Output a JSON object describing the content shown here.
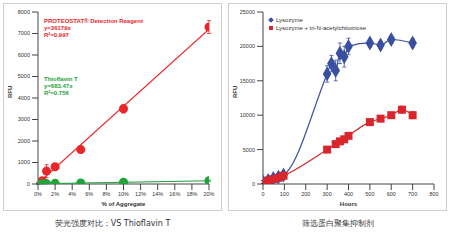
{
  "chart_data": [
    {
      "type": "scatter",
      "title": "荧光强度对比：VS Thioflavin T",
      "x_label": "% of Aggregate",
      "y_label": "RFU",
      "xlim": [
        0,
        20
      ],
      "xticks": [
        {
          "value": 0,
          "label": "0%"
        },
        {
          "value": 2,
          "label": "2%"
        },
        {
          "value": 4,
          "label": "4%"
        },
        {
          "value": 6,
          "label": "6%"
        },
        {
          "value": 8,
          "label": "8%"
        },
        {
          "value": 10,
          "label": "10%"
        },
        {
          "value": 12,
          "label": "12%"
        },
        {
          "value": 14,
          "label": "14%"
        },
        {
          "value": 16,
          "label": "16%"
        },
        {
          "value": 18,
          "label": "18%"
        },
        {
          "value": 20,
          "label": "20%"
        }
      ],
      "ylim": [
        0,
        8000
      ],
      "yticks": [
        0,
        1000,
        2000,
        3000,
        4000,
        5000,
        6000,
        7000,
        8000
      ],
      "grid": false,
      "series": [
        {
          "name": "PROTEOSTAT® Detection Reagent",
          "color": "#e8262a",
          "marker": "circle",
          "line_style": "fit",
          "annotations": [
            "y=36179x",
            "R²=0.997"
          ],
          "x": [
            0,
            0.5,
            1,
            2,
            5,
            10,
            20
          ],
          "values": [
            50,
            150,
            600,
            800,
            1600,
            3500,
            7300
          ],
          "errors": [
            30,
            60,
            300,
            100,
            150,
            200,
            300
          ]
        },
        {
          "name": "Thioflavin T",
          "color": "#22a33a",
          "marker": "circle",
          "line_style": "fit",
          "annotations": [
            "y=683.47x",
            "R²=0.756"
          ],
          "x": [
            0,
            0.5,
            1,
            2,
            5,
            10,
            20
          ],
          "values": [
            0,
            10,
            20,
            30,
            50,
            80,
            150
          ],
          "errors": [
            10,
            10,
            10,
            10,
            15,
            20,
            30
          ]
        }
      ]
    },
    {
      "type": "scatter",
      "title": "筛选蛋白聚集抑制剂",
      "x_label": "Hours",
      "y_label": "RFU",
      "xlim": [
        0,
        800
      ],
      "xticks": [
        0,
        100,
        200,
        300,
        400,
        500,
        600,
        700,
        800
      ],
      "ylim": [
        0,
        25000
      ],
      "yticks": [
        0,
        5000,
        10000,
        15000,
        20000,
        25000
      ],
      "grid": false,
      "legend": "upper left",
      "series": [
        {
          "name": "Lysozyme",
          "color": "#3b4fa0",
          "marker": "diamond",
          "line_style": "smooth",
          "x": [
            0,
            24,
            48,
            72,
            96,
            300,
            320,
            340,
            360,
            380,
            400,
            500,
            550,
            600,
            700
          ],
          "values": [
            300,
            500,
            800,
            1000,
            1300,
            16000,
            17500,
            16500,
            19000,
            18500,
            20000,
            20500,
            20200,
            21000,
            20500
          ],
          "errors": [
            200,
            200,
            300,
            300,
            300,
            1200,
            1200,
            1500,
            1500,
            1500,
            1200,
            600,
            500,
            500,
            600
          ]
        },
        {
          "name": "Lysozyme + tri-N-acetylchitotriose",
          "color": "#d9262c",
          "marker": "square",
          "line_style": "smooth",
          "x": [
            0,
            24,
            48,
            72,
            96,
            300,
            340,
            360,
            380,
            400,
            500,
            550,
            600,
            650,
            700
          ],
          "values": [
            300,
            500,
            700,
            900,
            1200,
            5000,
            5800,
            6200,
            6500,
            7000,
            9000,
            9500,
            10000,
            10800,
            10000
          ],
          "errors": [
            200,
            200,
            200,
            300,
            300,
            400,
            400,
            400,
            400,
            400,
            400,
            400,
            400,
            500,
            500
          ]
        }
      ]
    }
  ]
}
